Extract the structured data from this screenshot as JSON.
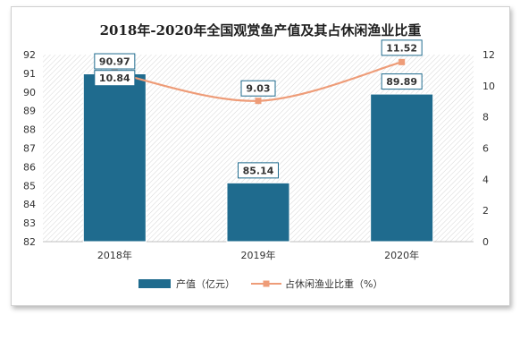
{
  "chart_data": {
    "type": "bar+line",
    "title": "2018年-2020年全国观赏鱼产值及其占休闲渔业比重",
    "categories": [
      "2018年",
      "2019年",
      "2020年"
    ],
    "series": [
      {
        "name": "产值（亿元）",
        "type": "bar",
        "axis": "left",
        "values": [
          90.97,
          85.14,
          89.89
        ],
        "labels": [
          "90.97",
          "85.14",
          "89.89"
        ]
      },
      {
        "name": "占休闲渔业比重（%）",
        "type": "line",
        "axis": "right",
        "values": [
          10.84,
          9.03,
          11.52
        ],
        "labels": [
          "10.84",
          "9.03",
          "11.52"
        ]
      }
    ],
    "y_left": {
      "min": 82,
      "max": 92,
      "step": 1
    },
    "y_right": {
      "min": 0,
      "max": 12,
      "step": 2
    },
    "grid": false,
    "plot_background": "hatched",
    "legend_position": "bottom",
    "colors": {
      "bar": "#1f6b8e",
      "line": "#ee9c78",
      "label_border": "#1f6b8e"
    }
  }
}
